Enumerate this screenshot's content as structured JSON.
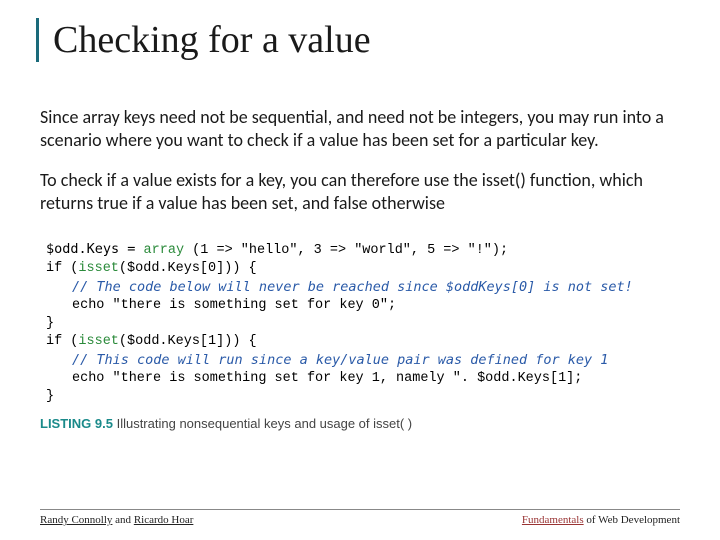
{
  "title": "Checking for a value",
  "para1": "Since array keys need not be sequential, and need not be integers, you may run into a scenario where you want to check if a value has been set for a particular key.",
  "para2": "To check if a value exists for a key, you can therefore use the isset() function, which returns true if a value has been set, and false otherwise",
  "code": {
    "l1a": "$odd.Keys = ",
    "l1b": "array",
    "l1c": " (1 => \"hello\", 3 => \"world\", 5 => \"!\");",
    "l2a": "if (",
    "l2b": "isset",
    "l2c": "($odd.Keys[0])) {",
    "l3": "// The code below will never be reached since $oddKeys[0] is not set!",
    "l4": "echo \"there is something set for key 0\";",
    "l5": "}",
    "l6a": "if (",
    "l6b": "isset",
    "l6c": "($odd.Keys[1])) {",
    "l7": "// This code will run since a key/value pair was defined for key 1",
    "l8": "echo \"there is something set for key 1, namely \". $odd.Keys[1];",
    "l9": "}"
  },
  "listing": {
    "label": "LISTING 9.5",
    "caption": " Illustrating nonsequential keys and usage of isset( )"
  },
  "footer": {
    "left_a": "Randy Connolly",
    "left_b": " and ",
    "left_c": "Ricardo Hoar",
    "right_a": "Fundamentals",
    "right_b": " of Web Development"
  },
  "colors": {
    "title_rule": "#1a6a7a",
    "code_fn": "#2a8a3a",
    "code_comment": "#2a5aa8",
    "listing_label": "#1a8a8a",
    "footer_accent": "#993333",
    "background": "#ffffff",
    "text": "#1a1a1a"
  },
  "typography": {
    "title_fontsize": 38,
    "title_family": "Times New Roman",
    "body_fontsize": 18,
    "code_fontsize": 13.5,
    "footer_fontsize": 11
  }
}
